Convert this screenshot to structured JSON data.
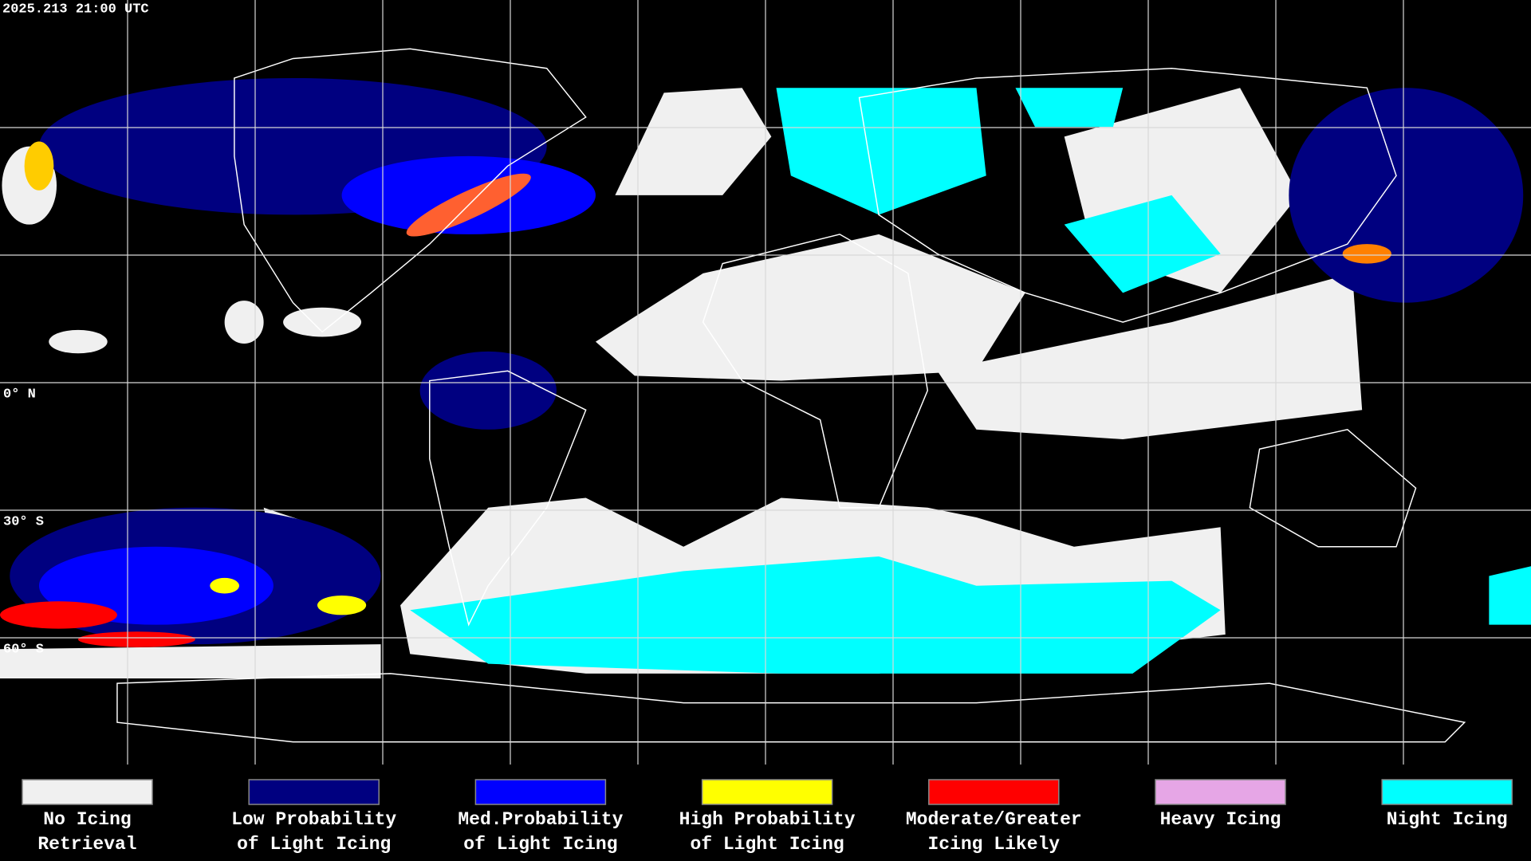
{
  "header": {
    "timestamp": "2025.213 21:00 UTC"
  },
  "map": {
    "latitude_labels": [
      "0° N",
      "30° S",
      "60° S"
    ]
  },
  "legend": {
    "items": [
      {
        "label": [
          "No Icing",
          "Retrieval"
        ],
        "color": "#f0f0f0"
      },
      {
        "label": [
          "Low Probability",
          "of Light Icing"
        ],
        "color": "#000080"
      },
      {
        "label": [
          "Med.Probability",
          "of Light Icing"
        ],
        "color": "#0000ff"
      },
      {
        "label": [
          "High Probability",
          "of Light Icing"
        ],
        "color": "#ffff00"
      },
      {
        "label": [
          "Moderate/Greater",
          "Icing Likely"
        ],
        "color": "#ff0000"
      },
      {
        "label": [
          "Heavy Icing"
        ],
        "color": "#e6a6e6"
      },
      {
        "label": [
          "Night Icing"
        ],
        "color": "#00ffff"
      }
    ]
  }
}
